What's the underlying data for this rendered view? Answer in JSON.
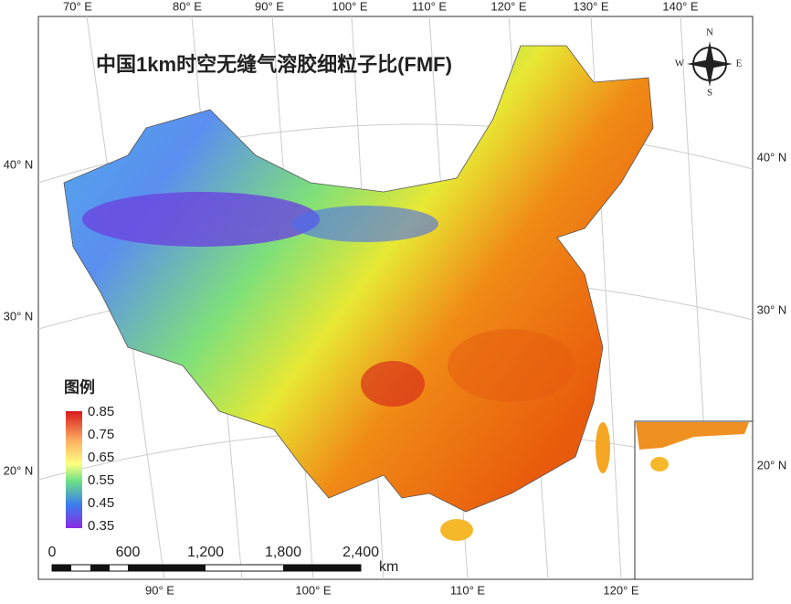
{
  "title": "中国1km时空无缝气溶胶细粒子比(FMF)",
  "top_lon_labels": [
    "70° E",
    "80° E",
    "90° E",
    "100° E",
    "110° E",
    "120° E",
    "130° E",
    "140° E"
  ],
  "bottom_lon_labels": [
    "90° E",
    "100° E",
    "110° E",
    "120° E"
  ],
  "left_lat_labels": [
    "40° N",
    "30° N",
    "20° N"
  ],
  "right_lat_labels": [
    "40° N",
    "30° N",
    "20° N"
  ],
  "legend": {
    "title": "图例",
    "labels": [
      "0.85",
      "0.75",
      "0.65",
      "0.55",
      "0.45",
      "0.35"
    ]
  },
  "scale_bar": {
    "labels": [
      "0",
      "600",
      "1,200",
      "1,800",
      "2,400"
    ],
    "unit": "km"
  },
  "compass": {
    "n": "N",
    "e": "E",
    "s": "S",
    "w": "W"
  }
}
